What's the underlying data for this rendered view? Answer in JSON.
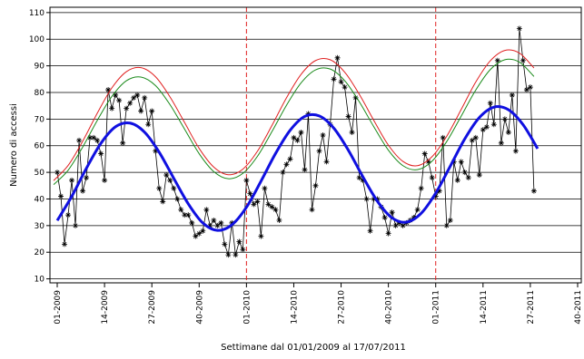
{
  "chart_data": {
    "type": "line",
    "xlabel": "Settimane dal 01/01/2009 al 17/07/2011",
    "ylabel": "Numero di accessi",
    "xlim": [
      -2,
      144
    ],
    "ylim": [
      8.5,
      112
    ],
    "xticks": [
      {
        "value": 0,
        "label": "01-2009"
      },
      {
        "value": 13,
        "label": "14-2009"
      },
      {
        "value": 26,
        "label": "27-2009"
      },
      {
        "value": 39,
        "label": "40-2009"
      },
      {
        "value": 52,
        "label": "01-2010"
      },
      {
        "value": 65,
        "label": "14-2010"
      },
      {
        "value": 78,
        "label": "27-2010"
      },
      {
        "value": 91,
        "label": "40-2010"
      },
      {
        "value": 104,
        "label": "01-2011"
      },
      {
        "value": 117,
        "label": "14-2011"
      },
      {
        "value": 130,
        "label": "27-2011"
      },
      {
        "value": 143,
        "label": "40-2011"
      }
    ],
    "yticks": [
      10,
      20,
      30,
      40,
      50,
      60,
      70,
      80,
      90,
      100,
      110
    ],
    "grid": true,
    "vlines": [
      52,
      104
    ],
    "vline_color": "#e02020",
    "series": [
      {
        "color": "#000000",
        "marker": "asterisk",
        "x": [
          0,
          1,
          2,
          3,
          4,
          5,
          6,
          7,
          8,
          9,
          10,
          11,
          12,
          13,
          14,
          15,
          16,
          17,
          18,
          19,
          20,
          21,
          22,
          23,
          24,
          25,
          26,
          27,
          28,
          29,
          30,
          31,
          32,
          33,
          34,
          35,
          36,
          37,
          38,
          39,
          40,
          41,
          42,
          43,
          44,
          45,
          46,
          47,
          48,
          49,
          50,
          51,
          52,
          53,
          54,
          55,
          56,
          57,
          58,
          59,
          60,
          61,
          62,
          63,
          64,
          65,
          66,
          67,
          68,
          69,
          70,
          71,
          72,
          73,
          74,
          75,
          76,
          77,
          78,
          79,
          80,
          81,
          82,
          83,
          84,
          85,
          86,
          87,
          88,
          89,
          90,
          91,
          92,
          93,
          94,
          95,
          96,
          97,
          98,
          99,
          100,
          101,
          102,
          103,
          104,
          105,
          106,
          107,
          108,
          109,
          110,
          111,
          112,
          113,
          114,
          115,
          116,
          117,
          118,
          119,
          120,
          121,
          122,
          123,
          124,
          125,
          126,
          127,
          128,
          129,
          130,
          131
        ],
        "values": [
          50,
          41,
          23,
          34,
          47,
          30,
          62,
          43,
          48,
          63,
          63,
          62,
          57,
          47,
          81,
          74,
          79,
          77,
          61,
          74,
          76,
          78,
          79,
          73,
          78,
          68,
          73,
          58,
          44,
          39,
          49,
          47,
          44,
          40,
          36,
          34,
          34,
          31,
          26,
          27,
          28,
          36,
          30,
          32,
          30,
          31,
          23,
          19,
          31,
          19,
          24,
          21,
          47,
          42,
          38,
          39,
          26,
          44,
          38,
          37,
          36,
          32,
          50,
          53,
          55,
          63,
          62,
          65,
          51,
          72,
          36,
          45,
          58,
          64,
          54,
          68,
          85,
          93,
          84,
          82,
          71,
          65,
          78,
          48,
          47,
          40,
          28,
          40,
          40,
          37,
          33,
          27,
          35,
          30,
          31,
          30,
          31,
          32,
          33,
          36,
          44,
          57,
          54,
          48,
          41,
          43,
          63,
          30,
          32,
          54,
          47,
          54,
          50,
          48,
          62,
          63,
          49,
          66,
          67,
          76,
          68,
          92,
          61,
          70,
          65,
          79,
          58,
          104,
          92,
          81,
          82,
          43
        ]
      },
      {
        "color": "#e02020",
        "width": 1,
        "x": [
          -1,
          3,
          7,
          11,
          15,
          19,
          23,
          27,
          31,
          35,
          39,
          43,
          47,
          51,
          55,
          59,
          63,
          67,
          71,
          75,
          79,
          83,
          87,
          91,
          95,
          99,
          103,
          107,
          111,
          115,
          119,
          123,
          127,
          131
        ],
        "values": [
          46.9,
          52.6,
          61.7,
          72.2,
          81.7,
          87.8,
          89.3,
          85.9,
          78.3,
          68.7,
          59.0,
          52.0,
          49.1,
          51.2,
          57.9,
          67.6,
          78.0,
          86.8,
          92.0,
          92.3,
          87.6,
          79.3,
          69.5,
          60.2,
          54.1,
          52.5,
          55.9,
          63.5,
          73.6,
          83.9,
          91.9,
          95.8,
          94.8,
          89.2
        ]
      },
      {
        "color": "#1a8a1a",
        "width": 1,
        "x": [
          -1,
          3,
          7,
          11,
          15,
          19,
          23,
          27,
          31,
          35,
          39,
          43,
          47,
          51,
          55,
          59,
          63,
          67,
          71,
          75,
          79,
          83,
          87,
          91,
          95,
          99,
          103,
          107,
          111,
          115,
          119,
          123,
          127,
          131
        ],
        "values": [
          45.4,
          50.8,
          59.5,
          69.5,
          78.5,
          84.4,
          85.8,
          82.6,
          75.4,
          66.2,
          57.0,
          50.3,
          47.6,
          49.6,
          56.0,
          65.3,
          75.2,
          83.6,
          88.5,
          88.8,
          84.4,
          76.5,
          67.1,
          58.3,
          52.5,
          51.0,
          54.2,
          61.5,
          71.1,
          80.9,
          88.6,
          92.3,
          91.4,
          86.0
        ]
      },
      {
        "color": "#1010e0",
        "width": 3,
        "x": [
          0,
          4,
          8,
          12,
          16,
          20,
          24,
          28,
          32,
          36,
          40,
          44,
          48,
          52,
          56,
          60,
          64,
          68,
          72,
          76,
          80,
          84,
          88,
          92,
          96,
          100,
          104,
          108,
          112,
          116,
          120,
          124,
          128,
          132
        ],
        "values": [
          31.9,
          41.0,
          51.5,
          60.9,
          67.1,
          68.5,
          65.1,
          57.6,
          47.8,
          38.2,
          31.0,
          28.2,
          30.3,
          36.9,
          46.7,
          57.1,
          65.8,
          71.0,
          71.2,
          66.6,
          58.3,
          48.3,
          39.1,
          32.9,
          31.3,
          34.6,
          42.2,
          52.3,
          62.6,
          70.6,
          74.5,
          73.5,
          67.9,
          58.9
        ]
      }
    ]
  }
}
